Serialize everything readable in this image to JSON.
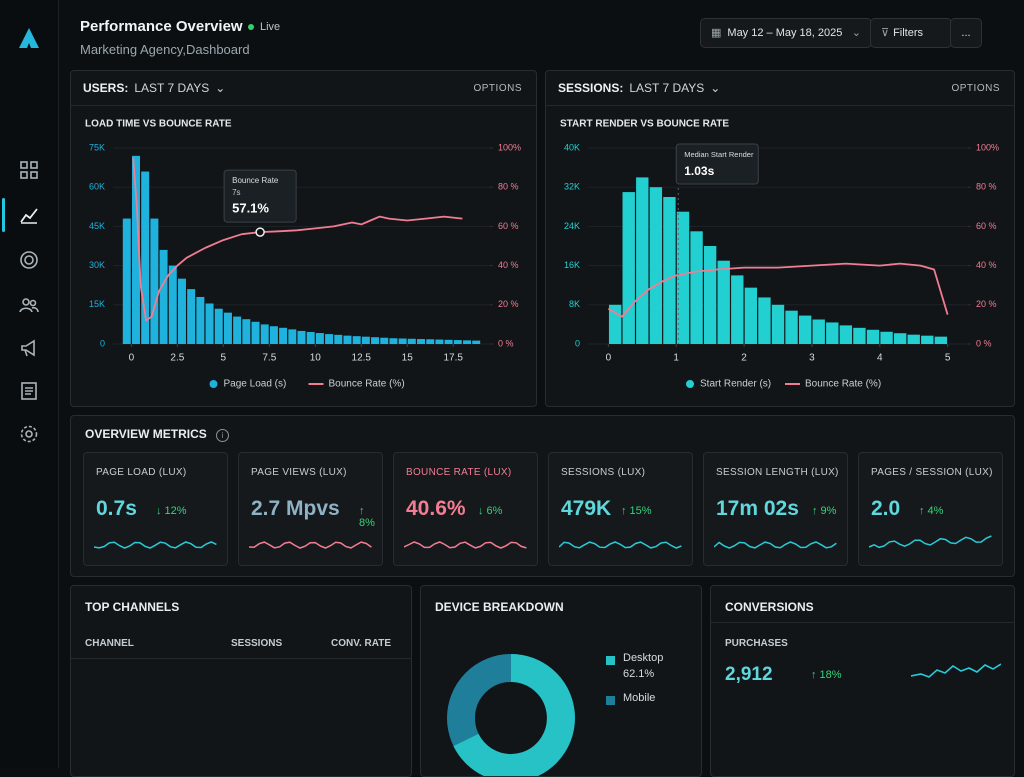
{
  "header": {
    "title": "Performance Overview",
    "status": "Live",
    "subtitle": "Marketing Agency,Dashboard",
    "date_range": "May 12 – May 18, 2025",
    "filters": "Filters",
    "more": "..."
  },
  "panels": [
    {
      "label": "USERS:",
      "range": "LAST 7 DAYS",
      "options": "OPTIONS"
    },
    {
      "label": "SESSIONS:",
      "range": "LAST 7 DAYS",
      "options": "OPTIONS"
    }
  ],
  "chart_data": [
    {
      "type": "histogram",
      "title": "LOAD TIME VS BOUNCE RATE",
      "bins": [
        -0.5,
        0,
        0.5,
        1,
        1.5,
        2,
        2.5,
        3,
        3.5,
        4,
        4.5,
        5,
        5.5,
        6,
        6.5,
        7,
        7.5,
        8,
        8.5,
        9,
        9.5,
        10,
        10.5,
        11,
        11.5,
        12,
        12.5,
        13,
        13.5,
        14,
        14.5,
        15,
        15.5,
        16,
        16.5,
        17,
        17.5,
        18,
        18.5,
        19
      ],
      "series": [
        {
          "name": "Page Load (s)",
          "color": "#1eb2dc",
          "values": [
            48000,
            72000,
            66000,
            48000,
            36000,
            30000,
            25000,
            21000,
            18000,
            15500,
            13500,
            12000,
            10500,
            9500,
            8500,
            7500,
            6800,
            6200,
            5600,
            5000,
            4600,
            4200,
            3800,
            3500,
            3200,
            3000,
            2800,
            2600,
            2400,
            2200,
            2100,
            2000,
            1900,
            1800,
            1700,
            1600,
            1500,
            1400,
            1300
          ]
        },
        {
          "name": "Bounce Rate (%)",
          "color": "#f27d93",
          "type": "line",
          "axis": "y2",
          "x": [
            0.1,
            0.3,
            0.5,
            0.8,
            1.1,
            1.5,
            2,
            2.5,
            3,
            4,
            5,
            6,
            7,
            8,
            9,
            10,
            11,
            12,
            12.5,
            13,
            13.5,
            14,
            15,
            16,
            17,
            18
          ],
          "values": [
            95,
            70,
            30,
            12,
            14,
            27,
            35,
            40,
            44,
            49,
            53,
            56,
            57.1,
            57.5,
            58,
            59,
            60,
            62,
            61,
            63,
            65,
            64,
            63,
            64,
            65,
            64
          ]
        }
      ],
      "xlim": [
        -1,
        19.5
      ],
      "xticks": [
        0,
        2.5,
        5,
        7.5,
        10,
        12.5,
        15,
        17.5
      ],
      "ylim": [
        0,
        75000
      ],
      "yticks": [
        {
          "value": 0,
          "label": "0"
        },
        {
          "value": 15000,
          "label": "15K"
        },
        {
          "value": 30000,
          "label": "30K"
        },
        {
          "value": 45000,
          "label": "45K"
        },
        {
          "value": 60000,
          "label": "60K"
        },
        {
          "value": 75000,
          "label": "75K"
        }
      ],
      "y2lim": [
        0,
        100
      ],
      "y2ticks": [
        {
          "value": 0,
          "label": "0 %"
        },
        {
          "value": 20,
          "label": "20 %"
        },
        {
          "value": 40,
          "label": "40 %"
        },
        {
          "value": 60,
          "label": "60 %"
        },
        {
          "value": 80,
          "label": "80 %"
        },
        {
          "value": 100,
          "label": "100%"
        }
      ],
      "annotation": {
        "title": "Bounce Rate",
        "x": 7,
        "x_label": "7s",
        "y": 57.1,
        "y_label": "57.1%"
      }
    },
    {
      "type": "histogram",
      "title": "START RENDER VS BOUNCE RATE",
      "bins": [
        0,
        0.2,
        0.4,
        0.6,
        0.8,
        1,
        1.2,
        1.4,
        1.6,
        1.8,
        2,
        2.2,
        2.4,
        2.6,
        2.8,
        3,
        3.2,
        3.4,
        3.6,
        3.8,
        4,
        4.2,
        4.4,
        4.6,
        4.8,
        5
      ],
      "series": [
        {
          "name": "Start Render (s)",
          "color": "#22d0d2",
          "values": [
            8000,
            31000,
            34000,
            32000,
            30000,
            27000,
            23000,
            20000,
            17000,
            14000,
            11500,
            9500,
            8000,
            6800,
            5800,
            5000,
            4400,
            3800,
            3300,
            2900,
            2500,
            2200,
            1900,
            1700,
            1500
          ]
        },
        {
          "name": "Bounce Rate (%)",
          "color": "#f27d93",
          "type": "line",
          "axis": "y2",
          "x": [
            0,
            0.2,
            0.4,
            0.6,
            0.8,
            1,
            1.3,
            1.6,
            2,
            2.5,
            3,
            3.5,
            4,
            4.3,
            4.6,
            4.8,
            5
          ],
          "values": [
            18,
            14,
            22,
            28,
            32,
            35,
            37,
            38,
            39,
            39,
            40,
            41,
            40,
            41,
            40,
            38,
            15
          ]
        }
      ],
      "xlim": [
        -0.3,
        5.3
      ],
      "xticks": [
        0,
        1,
        2,
        3,
        4,
        5
      ],
      "ylim": [
        0,
        40000
      ],
      "yticks": [
        {
          "value": 0,
          "label": "0"
        },
        {
          "value": 8000,
          "label": "8K"
        },
        {
          "value": 16000,
          "label": "16K"
        },
        {
          "value": 24000,
          "label": "24K"
        },
        {
          "value": 32000,
          "label": "32K"
        },
        {
          "value": 40000,
          "label": "40K"
        }
      ],
      "y2lim": [
        0,
        100
      ],
      "y2ticks": [
        {
          "value": 0,
          "label": "0 %"
        },
        {
          "value": 20,
          "label": "20 %"
        },
        {
          "value": 40,
          "label": "40 %"
        },
        {
          "value": 60,
          "label": "60 %"
        },
        {
          "value": 80,
          "label": "80 %"
        },
        {
          "value": 100,
          "label": "100%"
        }
      ],
      "annotation": {
        "title": "Median Start Render",
        "x": 1.03,
        "x_label": "1.03s"
      }
    }
  ],
  "overview": {
    "title": "OVERVIEW METRICS",
    "info": "i",
    "metrics": [
      {
        "label": "PAGE LOAD (LUX)",
        "value": "0.7s",
        "change": "↓ 12%"
      },
      {
        "label": "PAGE VIEWS (LUX)",
        "value": "2.7 Mpvs",
        "change": "↑ 8%"
      },
      {
        "label": "BOUNCE RATE (LUX)",
        "value": "40.6%",
        "change": "↓ 6%"
      },
      {
        "label": "SESSIONS (LUX)",
        "value": "479K",
        "change": "↑ 15%"
      },
      {
        "label": "SESSION LENGTH (LUX)",
        "value": "17m 02s",
        "change": "↑ 9%"
      },
      {
        "label": "PAGES / SESSION (LUX)",
        "value": "2.0",
        "change": "↑ 4%"
      }
    ]
  },
  "top_channels": {
    "title": "TOP CHANNELS",
    "columns": [
      "CHANNEL",
      "SESSIONS",
      "CONV. RATE"
    ]
  },
  "device_breakdown": {
    "title": "DEVICE BREAKDOWN",
    "items": [
      {
        "label": "Desktop",
        "value": "62.1%"
      },
      {
        "label": "Mobile"
      }
    ]
  },
  "conversions": {
    "title": "CONVERSIONS",
    "label": "PURCHASES",
    "value": "2,912",
    "change": "↑ 18%"
  }
}
